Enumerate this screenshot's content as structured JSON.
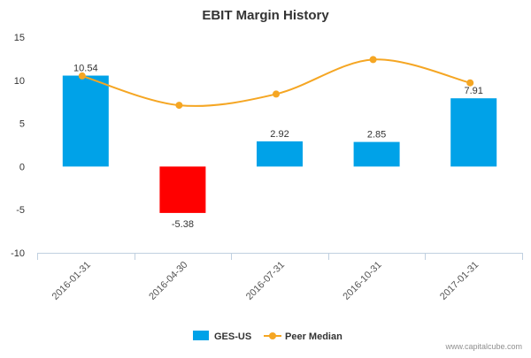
{
  "chart_data": {
    "type": "bar",
    "title": "EBIT Margin History",
    "categories": [
      "2016-01-31",
      "2016-04-30",
      "2016-07-31",
      "2016-10-31",
      "2017-01-31"
    ],
    "series": [
      {
        "name": "GES-US",
        "type": "bar",
        "values": [
          10.54,
          -5.38,
          2.92,
          2.85,
          7.91
        ],
        "labels": [
          "10.54",
          "-5.38",
          "2.92",
          "2.85",
          "7.91"
        ],
        "color": "#00a2e8",
        "negative_color": "#ff0000"
      },
      {
        "name": "Peer Median",
        "type": "line",
        "values": [
          10.5,
          7.1,
          8.4,
          12.4,
          9.7
        ],
        "color": "#f5a623"
      }
    ],
    "ylim": [
      -10,
      15
    ],
    "yticks": [
      "15",
      "10",
      "5",
      "0",
      "-5",
      "-10"
    ],
    "legend": "bottom",
    "grid": false
  },
  "credit": "www.capitalcube.com"
}
